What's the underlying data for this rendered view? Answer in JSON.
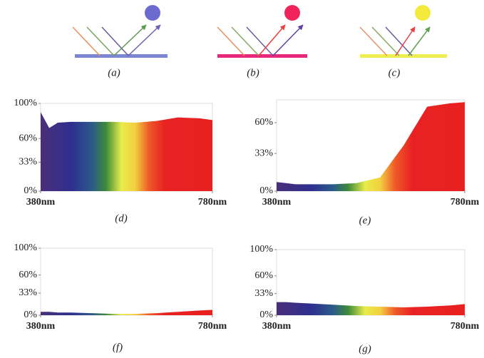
{
  "panels": {
    "captions": [
      "(a)",
      "(b)",
      "(c)"
    ]
  },
  "chart_data": [
    {
      "type": "area",
      "caption": "(d)",
      "x": [
        380,
        400,
        420,
        450,
        500,
        550,
        600,
        650,
        700,
        750,
        780
      ],
      "values": [
        90,
        72,
        78,
        79,
        79,
        79,
        78,
        80,
        84,
        83,
        81
      ],
      "xlim": [
        380,
        780
      ],
      "ylim": [
        0,
        100
      ],
      "xticks": [
        {
          "value": 380,
          "label": "380nm"
        },
        {
          "value": 780,
          "label": "780nm"
        }
      ],
      "yticks": [
        {
          "value": 100,
          "label": "100%"
        },
        {
          "value": 60,
          "label": "60%"
        },
        {
          "value": 33,
          "label": "33%"
        },
        {
          "value": 0,
          "label": "0%"
        }
      ]
    },
    {
      "type": "area",
      "caption": "(e)",
      "x": [
        380,
        400,
        420,
        450,
        500,
        550,
        600,
        650,
        700,
        750,
        780
      ],
      "values": [
        8,
        7,
        6,
        6,
        6,
        7,
        12,
        40,
        74,
        77,
        78
      ],
      "xlim": [
        380,
        780
      ],
      "ylim": [
        0,
        80
      ],
      "xticks": [
        {
          "value": 380,
          "label": "380nm"
        },
        {
          "value": 780,
          "label": "780nm"
        }
      ],
      "yticks": [
        {
          "value": 60,
          "label": "60%"
        },
        {
          "value": 33,
          "label": "33%"
        },
        {
          "value": 0,
          "label": "0%"
        }
      ]
    },
    {
      "type": "area",
      "caption": "(f)",
      "x": [
        380,
        400,
        420,
        450,
        500,
        550,
        600,
        650,
        700,
        750,
        780
      ],
      "values": [
        5,
        5,
        4,
        4,
        3,
        2,
        2,
        3,
        5,
        7,
        8
      ],
      "xlim": [
        380,
        780
      ],
      "ylim": [
        0,
        100
      ],
      "xticks": [
        {
          "value": 380,
          "label": "380nm"
        },
        {
          "value": 780,
          "label": "780nm"
        }
      ],
      "yticks": [
        {
          "value": 100,
          "label": "100%"
        },
        {
          "value": 60,
          "label": "60%"
        },
        {
          "value": 33,
          "label": "33%"
        },
        {
          "value": 0,
          "label": "0%"
        }
      ]
    },
    {
      "type": "area",
      "caption": "(g)",
      "x": [
        380,
        400,
        420,
        450,
        500,
        550,
        600,
        650,
        700,
        750,
        780
      ],
      "values": [
        20,
        20,
        19,
        18,
        16,
        14,
        13,
        12,
        13,
        15,
        17
      ],
      "xlim": [
        380,
        780
      ],
      "ylim": [
        0,
        100
      ],
      "xticks": [
        {
          "value": 380,
          "label": "380nm"
        },
        {
          "value": 780,
          "label": "780nm"
        }
      ],
      "yticks": [
        {
          "value": 100,
          "label": "100%"
        },
        {
          "value": 60,
          "label": "60%"
        },
        {
          "value": 33,
          "label": "33%"
        },
        {
          "value": 0,
          "label": "0%"
        }
      ]
    }
  ]
}
